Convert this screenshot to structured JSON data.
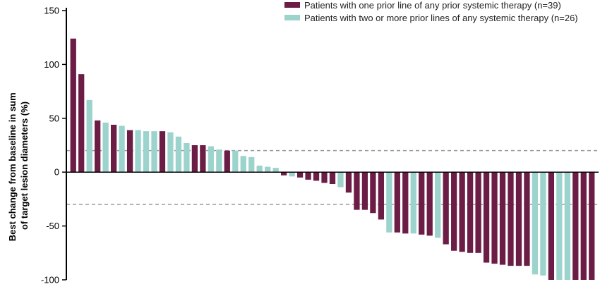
{
  "chart_data": {
    "type": "bar",
    "title": "",
    "ylabel_lines": [
      "Best change from baseline in sum",
      "of target lesion diameters (%)"
    ],
    "xlabel": "",
    "ylim": [
      -100,
      150
    ],
    "yticks": [
      150,
      100,
      50,
      0,
      -50,
      -100
    ],
    "reference_lines": [
      20,
      -30
    ],
    "grid": false,
    "legend_position": "top-right",
    "colors": {
      "one_prior_line": "#6b1d45",
      "two_or_more_prior_lines": "#9dd3cd",
      "axis": "#000000",
      "reference_line": "#9a9a9a"
    },
    "series": [
      {
        "key": "one_prior_line",
        "name": "Patients with one prior line of any prior systemic therapy (n=39)"
      },
      {
        "key": "two_or_more_prior_lines",
        "name": "Patients with two or more prior lines of any systemic therapy (n=26)"
      }
    ],
    "bars": [
      {
        "value": 124,
        "series": "one_prior_line"
      },
      {
        "value": 91,
        "series": "one_prior_line"
      },
      {
        "value": 67,
        "series": "two_or_more_prior_lines"
      },
      {
        "value": 48,
        "series": "one_prior_line"
      },
      {
        "value": 46,
        "series": "two_or_more_prior_lines"
      },
      {
        "value": 44,
        "series": "one_prior_line"
      },
      {
        "value": 43,
        "series": "two_or_more_prior_lines"
      },
      {
        "value": 39,
        "series": "one_prior_line"
      },
      {
        "value": 39,
        "series": "two_or_more_prior_lines"
      },
      {
        "value": 38,
        "series": "two_or_more_prior_lines"
      },
      {
        "value": 38,
        "series": "two_or_more_prior_lines"
      },
      {
        "value": 38,
        "series": "one_prior_line"
      },
      {
        "value": 37,
        "series": "two_or_more_prior_lines"
      },
      {
        "value": 33,
        "series": "two_or_more_prior_lines"
      },
      {
        "value": 27,
        "series": "two_or_more_prior_lines"
      },
      {
        "value": 25,
        "series": "one_prior_line"
      },
      {
        "value": 25,
        "series": "one_prior_line"
      },
      {
        "value": 24,
        "series": "two_or_more_prior_lines"
      },
      {
        "value": 21,
        "series": "two_or_more_prior_lines"
      },
      {
        "value": 20,
        "series": "one_prior_line"
      },
      {
        "value": 20,
        "series": "two_or_more_prior_lines"
      },
      {
        "value": 15,
        "series": "two_or_more_prior_lines"
      },
      {
        "value": 14,
        "series": "two_or_more_prior_lines"
      },
      {
        "value": 6,
        "series": "two_or_more_prior_lines"
      },
      {
        "value": 5,
        "series": "two_or_more_prior_lines"
      },
      {
        "value": 4,
        "series": "two_or_more_prior_lines"
      },
      {
        "value": -3,
        "series": "one_prior_line"
      },
      {
        "value": -4,
        "series": "two_or_more_prior_lines"
      },
      {
        "value": -5,
        "series": "one_prior_line"
      },
      {
        "value": -7,
        "series": "one_prior_line"
      },
      {
        "value": -8,
        "series": "one_prior_line"
      },
      {
        "value": -10,
        "series": "one_prior_line"
      },
      {
        "value": -11,
        "series": "one_prior_line"
      },
      {
        "value": -14,
        "series": "two_or_more_prior_lines"
      },
      {
        "value": -19,
        "series": "one_prior_line"
      },
      {
        "value": -35,
        "series": "one_prior_line"
      },
      {
        "value": -35,
        "series": "one_prior_line"
      },
      {
        "value": -38,
        "series": "one_prior_line"
      },
      {
        "value": -44,
        "series": "one_prior_line"
      },
      {
        "value": -56,
        "series": "two_or_more_prior_lines"
      },
      {
        "value": -56,
        "series": "one_prior_line"
      },
      {
        "value": -57,
        "series": "one_prior_line"
      },
      {
        "value": -57,
        "series": "two_or_more_prior_lines"
      },
      {
        "value": -58,
        "series": "one_prior_line"
      },
      {
        "value": -59,
        "series": "one_prior_line"
      },
      {
        "value": -61,
        "series": "two_or_more_prior_lines"
      },
      {
        "value": -67,
        "series": "one_prior_line"
      },
      {
        "value": -73,
        "series": "one_prior_line"
      },
      {
        "value": -74,
        "series": "one_prior_line"
      },
      {
        "value": -75,
        "series": "one_prior_line"
      },
      {
        "value": -75,
        "series": "one_prior_line"
      },
      {
        "value": -84,
        "series": "one_prior_line"
      },
      {
        "value": -85,
        "series": "one_prior_line"
      },
      {
        "value": -86,
        "series": "one_prior_line"
      },
      {
        "value": -87,
        "series": "one_prior_line"
      },
      {
        "value": -87,
        "series": "one_prior_line"
      },
      {
        "value": -87,
        "series": "one_prior_line"
      },
      {
        "value": -95,
        "series": "two_or_more_prior_lines"
      },
      {
        "value": -96,
        "series": "two_or_more_prior_lines"
      },
      {
        "value": -100,
        "series": "one_prior_line"
      },
      {
        "value": -100,
        "series": "two_or_more_prior_lines"
      },
      {
        "value": -100,
        "series": "two_or_more_prior_lines"
      },
      {
        "value": -100,
        "series": "one_prior_line"
      },
      {
        "value": -100,
        "series": "one_prior_line"
      },
      {
        "value": -100,
        "series": "one_prior_line"
      }
    ]
  }
}
